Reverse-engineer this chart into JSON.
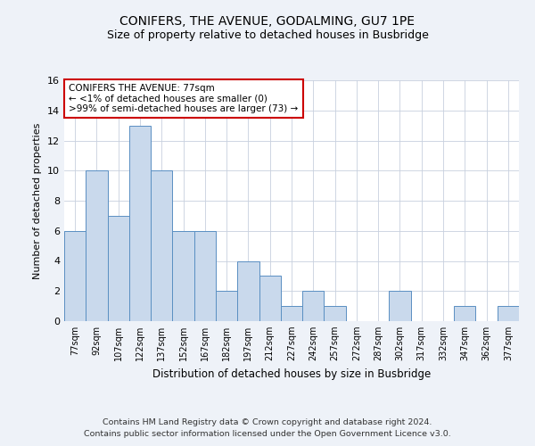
{
  "title": "CONIFERS, THE AVENUE, GODALMING, GU7 1PE",
  "subtitle": "Size of property relative to detached houses in Busbridge",
  "xlabel": "Distribution of detached houses by size in Busbridge",
  "ylabel": "Number of detached properties",
  "categories": [
    "77sqm",
    "92sqm",
    "107sqm",
    "122sqm",
    "137sqm",
    "152sqm",
    "167sqm",
    "182sqm",
    "197sqm",
    "212sqm",
    "227sqm",
    "242sqm",
    "257sqm",
    "272sqm",
    "287sqm",
    "302sqm",
    "317sqm",
    "332sqm",
    "347sqm",
    "362sqm",
    "377sqm"
  ],
  "values": [
    6,
    10,
    7,
    13,
    10,
    6,
    6,
    2,
    4,
    3,
    1,
    2,
    1,
    0,
    0,
    2,
    0,
    0,
    1,
    0,
    1
  ],
  "bar_color": "#c9d9ec",
  "bar_edge_color": "#5a8fc2",
  "annotation_title": "CONIFERS THE AVENUE: 77sqm",
  "annotation_line1": "← <1% of detached houses are smaller (0)",
  "annotation_line2": ">99% of semi-detached houses are larger (73) →",
  "ylim": [
    0,
    16
  ],
  "yticks": [
    0,
    2,
    4,
    6,
    8,
    10,
    12,
    14,
    16
  ],
  "footer_line1": "Contains HM Land Registry data © Crown copyright and database right 2024.",
  "footer_line2": "Contains public sector information licensed under the Open Government Licence v3.0.",
  "bg_color": "#eef2f8",
  "plot_bg_color": "#ffffff",
  "grid_color": "#c8d0de",
  "annotation_box_color": "#ffffff",
  "annotation_box_edge_color": "#cc0000",
  "title_fontsize": 10,
  "subtitle_fontsize": 9
}
